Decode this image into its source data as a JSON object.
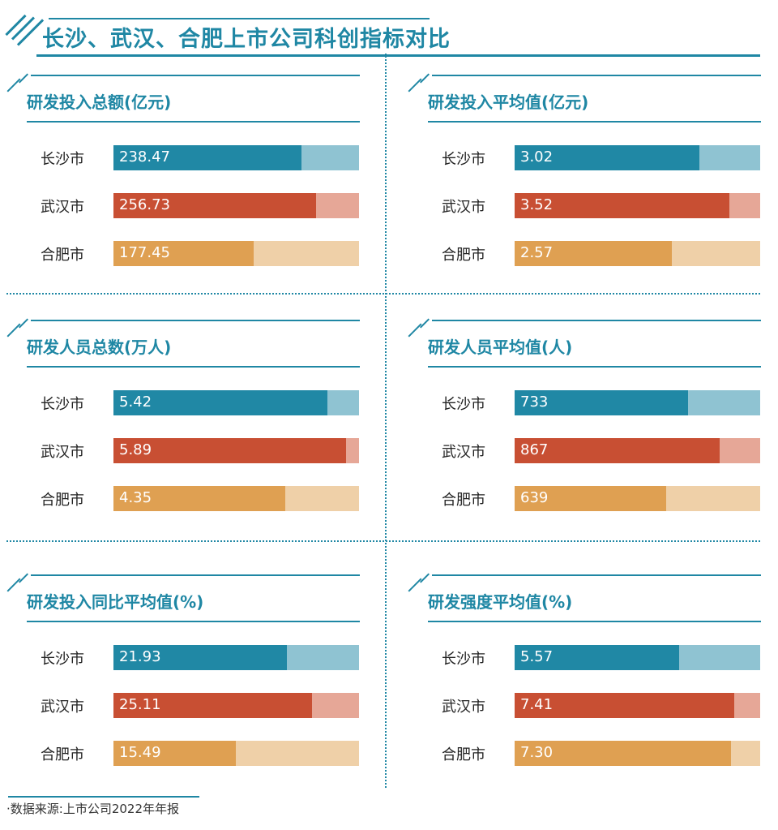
{
  "title": "长沙、武汉、合肥上市公司科创指标对比",
  "source": "·数据来源:上市公司2022年年报",
  "colors": {
    "accent": "#1f87a4",
    "长沙市": [
      "#2088a5",
      "#8fc3d2"
    ],
    "武汉市": [
      "#c84f33",
      "#e6a797"
    ],
    "合肥市": [
      "#dfa052",
      "#efd0a8"
    ]
  },
  "chart_data": [
    {
      "type": "bar",
      "title": "研发投入总额(亿元)",
      "categories": [
        "长沙市",
        "武汉市",
        "合肥市"
      ],
      "values": [
        238.47,
        256.73,
        177.45
      ],
      "labels": [
        "238.47",
        "256.73",
        "177.45"
      ],
      "xlim": [
        0,
        311
      ]
    },
    {
      "type": "bar",
      "title": "研发投入平均值(亿元)",
      "categories": [
        "长沙市",
        "武汉市",
        "合肥市"
      ],
      "values": [
        3.02,
        3.52,
        2.57
      ],
      "labels": [
        "3.02",
        "3.52",
        "2.57"
      ],
      "xlim": [
        0,
        4.02
      ]
    },
    {
      "type": "bar",
      "title": "研发人员总数(万人)",
      "categories": [
        "长沙市",
        "武汉市",
        "合肥市"
      ],
      "values": [
        5.42,
        5.89,
        4.35
      ],
      "labels": [
        "5.42",
        "5.89",
        "4.35"
      ],
      "xlim": [
        0,
        6.22
      ]
    },
    {
      "type": "bar",
      "title": "研发人员平均值(人)",
      "categories": [
        "长沙市",
        "武汉市",
        "合肥市"
      ],
      "values": [
        733,
        867,
        639
      ],
      "labels": [
        "733",
        "867",
        "639"
      ],
      "xlim": [
        0,
        1038
      ]
    },
    {
      "type": "bar",
      "title": "研发投入同比平均值(%)",
      "categories": [
        "长沙市",
        "武汉市",
        "合肥市"
      ],
      "values": [
        21.93,
        25.11,
        15.49
      ],
      "labels": [
        "21.93",
        "25.11",
        "15.49"
      ],
      "xlim": [
        0,
        31
      ]
    },
    {
      "type": "bar",
      "title": "研发强度平均值(%)",
      "categories": [
        "长沙市",
        "武汉市",
        "合肥市"
      ],
      "values": [
        5.57,
        7.41,
        7.3
      ],
      "labels": [
        "5.57",
        "7.41",
        "7.30"
      ],
      "xlim": [
        0,
        8.3
      ]
    }
  ]
}
